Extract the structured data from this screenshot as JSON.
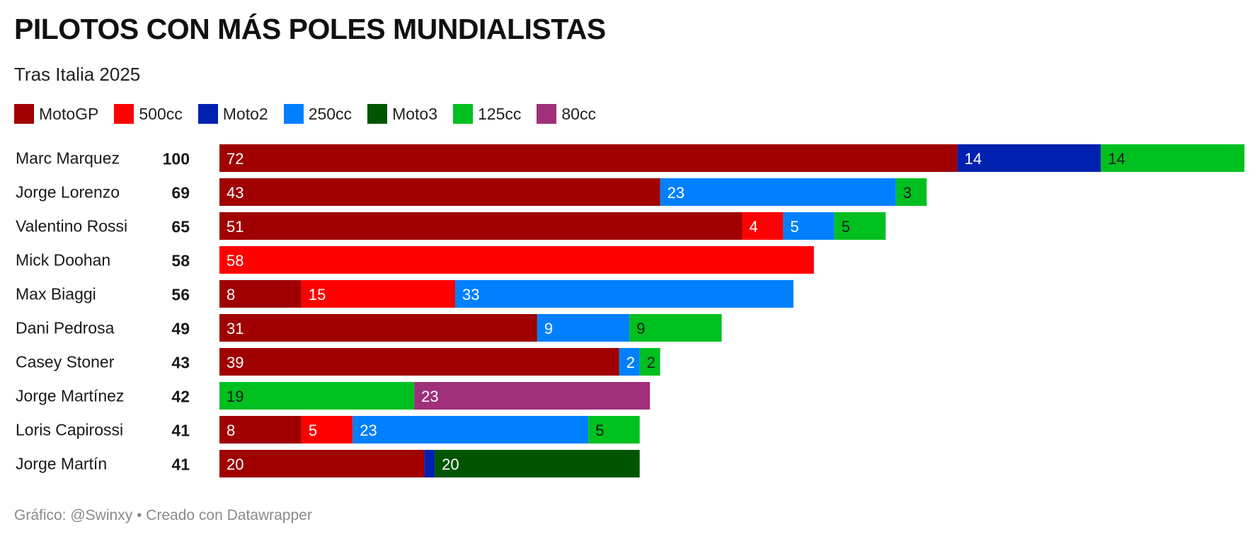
{
  "header": {
    "title": "PILOTOS CON MÁS POLES MUNDIALISTAS",
    "subtitle": "Tras Italia 2025"
  },
  "footer": {
    "credit": "Gráfico: @Swinxy • Creado con Datawrapper"
  },
  "chart_data": {
    "type": "bar",
    "orientation": "horizontal",
    "stacked": true,
    "title": "PILOTOS CON MÁS POLES MUNDIALISTAS",
    "subtitle": "Tras Italia 2025",
    "xlabel": "",
    "ylabel": "",
    "xlim": [
      0,
      100
    ],
    "grid": false,
    "legend_position": "top",
    "categories": [
      "Marc Marquez",
      "Jorge Lorenzo",
      "Valentino Rossi",
      "Mick Doohan",
      "Max Biaggi",
      "Dani Pedrosa",
      "Casey Stoner",
      "Jorge Martínez",
      "Loris Capirossi",
      "Jorge Martín"
    ],
    "totals": [
      100,
      69,
      65,
      58,
      56,
      49,
      43,
      42,
      41,
      41
    ],
    "series": [
      {
        "name": "MotoGP",
        "color": "#a00000",
        "label_color": "#ffffff",
        "values": [
          72,
          43,
          51,
          0,
          8,
          31,
          39,
          0,
          8,
          20
        ]
      },
      {
        "name": "500cc",
        "color": "#ff0000",
        "label_color": "#ffffff",
        "values": [
          0,
          0,
          4,
          58,
          15,
          0,
          0,
          0,
          5,
          0
        ]
      },
      {
        "name": "Moto2",
        "color": "#0020b0",
        "label_color": "#ffffff",
        "values": [
          14,
          0,
          0,
          0,
          0,
          0,
          0,
          0,
          0,
          1
        ]
      },
      {
        "name": "250cc",
        "color": "#0080ff",
        "label_color": "#ffffff",
        "values": [
          0,
          23,
          5,
          0,
          33,
          9,
          2,
          0,
          23,
          0
        ]
      },
      {
        "name": "Moto3",
        "color": "#005500",
        "label_color": "#ffffff",
        "values": [
          0,
          0,
          0,
          0,
          0,
          0,
          0,
          0,
          0,
          20
        ]
      },
      {
        "name": "125cc",
        "color": "#00c020",
        "label_color": "#1a1a1a",
        "values": [
          14,
          3,
          5,
          0,
          0,
          9,
          2,
          19,
          5,
          0
        ]
      },
      {
        "name": "80cc",
        "color": "#a0307a",
        "label_color": "#ffffff",
        "values": [
          0,
          0,
          0,
          0,
          0,
          0,
          0,
          23,
          0,
          0
        ]
      }
    ]
  }
}
